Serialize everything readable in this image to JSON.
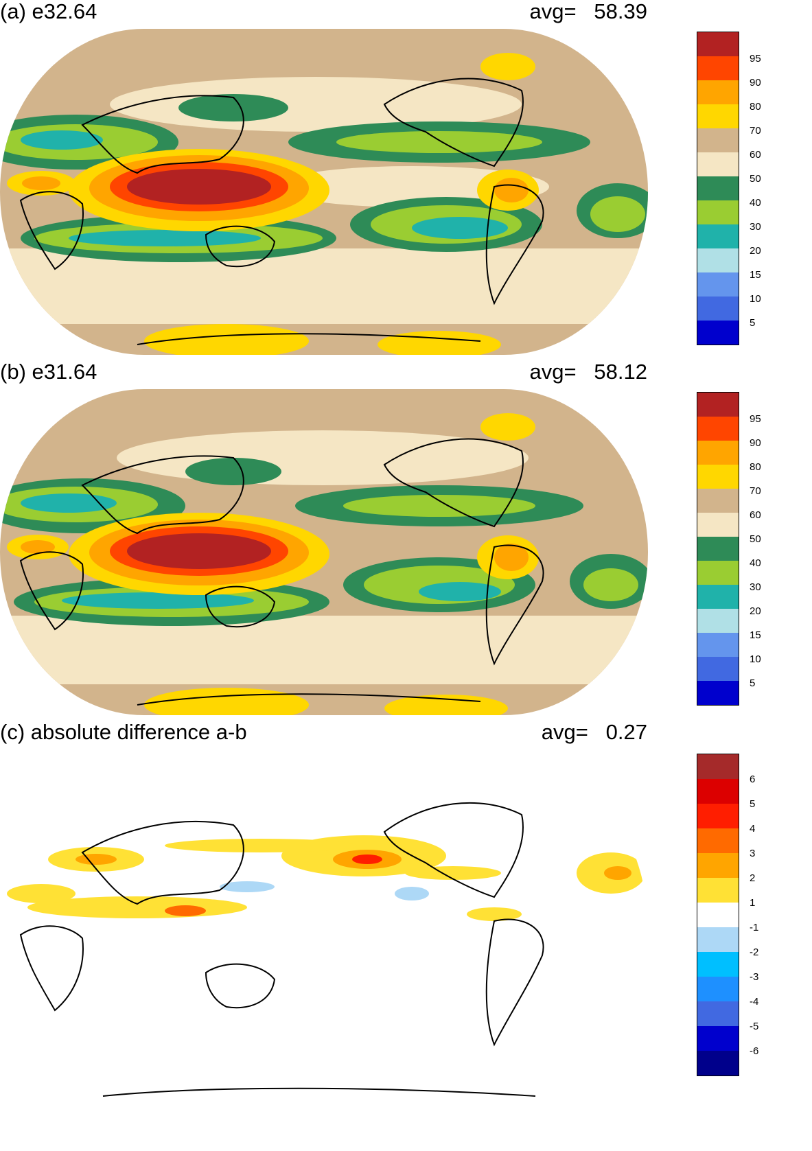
{
  "panels": [
    {
      "id": "a",
      "title": "(a) e32.64",
      "avg_label": "avg=",
      "avg_value": "58.39",
      "colorbar": {
        "labels": [
          "95",
          "90",
          "80",
          "70",
          "60",
          "50",
          "40",
          "30",
          "20",
          "15",
          "10",
          "5"
        ],
        "colors": [
          "#b22222",
          "#ff4500",
          "#ffa500",
          "#ffd700",
          "#d2b48c",
          "#f5e6c4",
          "#2e8b57",
          "#9acd32",
          "#20b2aa",
          "#b0e0e6",
          "#6495ed",
          "#4169e1",
          "#0000cd"
        ]
      }
    },
    {
      "id": "b",
      "title": "(b) e31.64",
      "avg_label": "avg=",
      "avg_value": "58.12",
      "colorbar": {
        "labels": [
          "95",
          "90",
          "80",
          "70",
          "60",
          "50",
          "40",
          "30",
          "20",
          "15",
          "10",
          "5"
        ],
        "colors": [
          "#b22222",
          "#ff4500",
          "#ffa500",
          "#ffd700",
          "#d2b48c",
          "#f5e6c4",
          "#2e8b57",
          "#9acd32",
          "#20b2aa",
          "#b0e0e6",
          "#6495ed",
          "#4169e1",
          "#0000cd"
        ]
      }
    },
    {
      "id": "c",
      "title": "(c) absolute difference a-b",
      "avg_label": "avg=",
      "avg_value": "0.27",
      "colorbar": {
        "labels": [
          "6",
          "5",
          "4",
          "3",
          "2",
          "1",
          "-1",
          "-2",
          "-3",
          "-4",
          "-5",
          "-6"
        ],
        "colors": [
          "#a52a2a",
          "#dc0000",
          "#ff1e00",
          "#ff6a00",
          "#ffa500",
          "#ffe135",
          "#ffffff",
          "#add8f6",
          "#00bfff",
          "#1e90ff",
          "#4169e1",
          "#0000cd",
          "#00008b"
        ]
      }
    }
  ],
  "colors": {
    "coastline": "#000000",
    "background": "#ffffff"
  }
}
